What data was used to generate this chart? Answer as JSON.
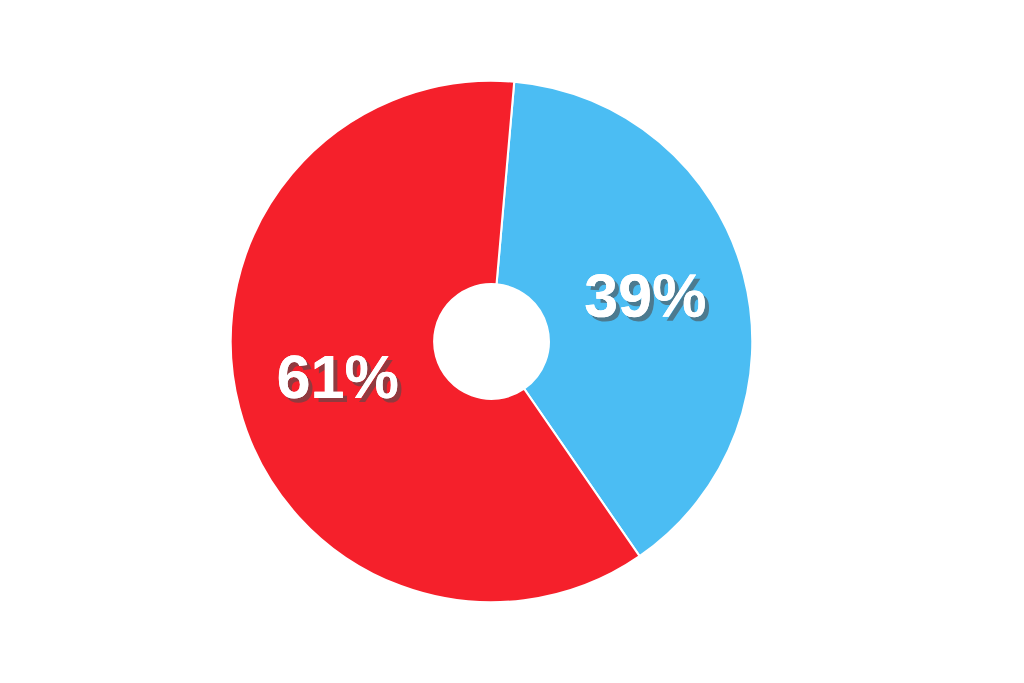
{
  "chart_data": {
    "type": "donut",
    "categories": [
      null,
      null
    ],
    "values": [
      39,
      61
    ],
    "colors": [
      "#4bbdf3",
      "#f5202b"
    ],
    "value_labels": [
      "39%",
      "61%"
    ],
    "legend": false
  }
}
